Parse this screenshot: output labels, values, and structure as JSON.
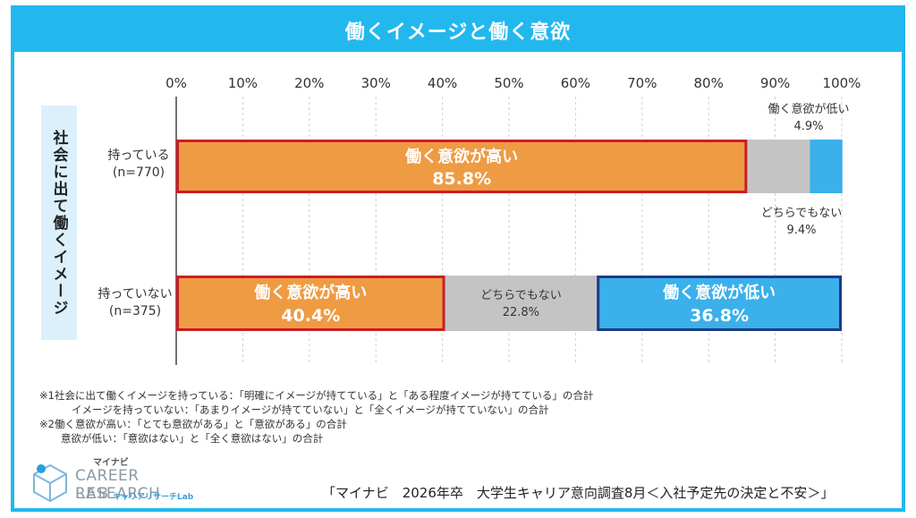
{
  "title": "働くイメージと働く意欲",
  "chart_data": {
    "type": "bar",
    "stacked": true,
    "orientation": "horizontal",
    "xlim": [
      0,
      100
    ],
    "ticks": [
      "0%",
      "10%",
      "20%",
      "30%",
      "40%",
      "50%",
      "60%",
      "70%",
      "80%",
      "90%",
      "100%"
    ],
    "ylabel": "社会に出て働くイメージ",
    "categories": [
      {
        "label": "持っている",
        "n": "(n=770)"
      },
      {
        "label": "持っていない",
        "n": "(n=375)"
      }
    ],
    "series": [
      {
        "name": "働く意欲が高い",
        "values": [
          85.8,
          40.4
        ],
        "color": "#ee9b43",
        "labels": [
          "85.8%",
          "40.4%"
        ]
      },
      {
        "name": "どちらでもない",
        "values": [
          9.4,
          22.8
        ],
        "color": "#c4c4c4",
        "labels": [
          "9.4%",
          "22.8%"
        ]
      },
      {
        "name": "働く意欲が低い",
        "values": [
          4.9,
          36.8
        ],
        "color": "#3bb0ea",
        "labels": [
          "4.9%",
          "36.8%"
        ]
      }
    ],
    "highlight": {
      "high": "#c81e28",
      "low": "#1d3b85"
    }
  },
  "notes": [
    "※1社会に出て働くイメージを持っている：「明確にイメージが持てている」と「ある程度イメージが持てている」の合計",
    "イメージを持っていない：「あまりイメージが持てていない」と「全くイメージが持てていない」の合計",
    "※2働く意欲が高い：「とても意欲がある」と「意欲がある」の合計",
    "意欲が低い：「意欲はない」と「全く意欲はない」の合計"
  ],
  "logo": {
    "small": "マイナビ",
    "main": "CAREER RESEARCH",
    "lab": "LAB",
    "sub": "キャリアリサーチLab"
  },
  "source": "「マイナビ　2026年卒　大学生キャリア意向調査8月＜入社予定先の決定と不安＞」"
}
